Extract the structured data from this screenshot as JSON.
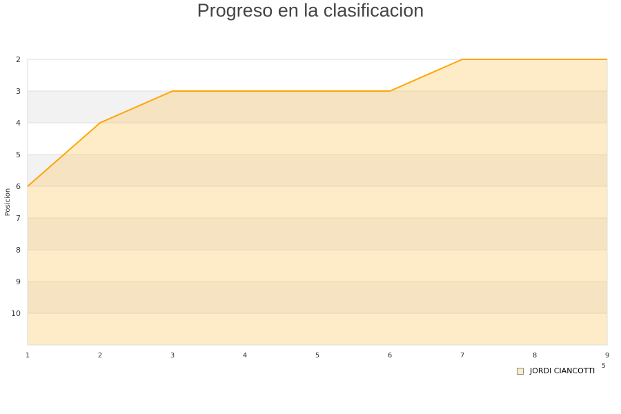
{
  "chart_data": {
    "type": "area",
    "title": "Progreso en la clasificacion",
    "xlabel_fragment": "5",
    "ylabel": "Posicion",
    "x": [
      1,
      2,
      3,
      4,
      5,
      6,
      7,
      8,
      9
    ],
    "series": [
      {
        "name": "JORDI CIANCOTTI",
        "values": [
          6,
          4,
          3,
          3,
          3,
          3,
          2,
          2,
          2
        ]
      }
    ],
    "xlim": [
      1,
      9
    ],
    "ylim": [
      2,
      11
    ],
    "y_reversed": true,
    "yticks": [
      2,
      3,
      4,
      5,
      6,
      7,
      8,
      9,
      10
    ],
    "xticks": [
      1,
      2,
      3,
      4,
      5,
      6,
      7,
      8,
      9
    ],
    "grid": true,
    "legend_position": "bottom-right",
    "colors": {
      "line": "#ffa500",
      "fill": "#feecc8",
      "band": "#f2f2f2",
      "fill_band": "#f5e3c2"
    }
  }
}
